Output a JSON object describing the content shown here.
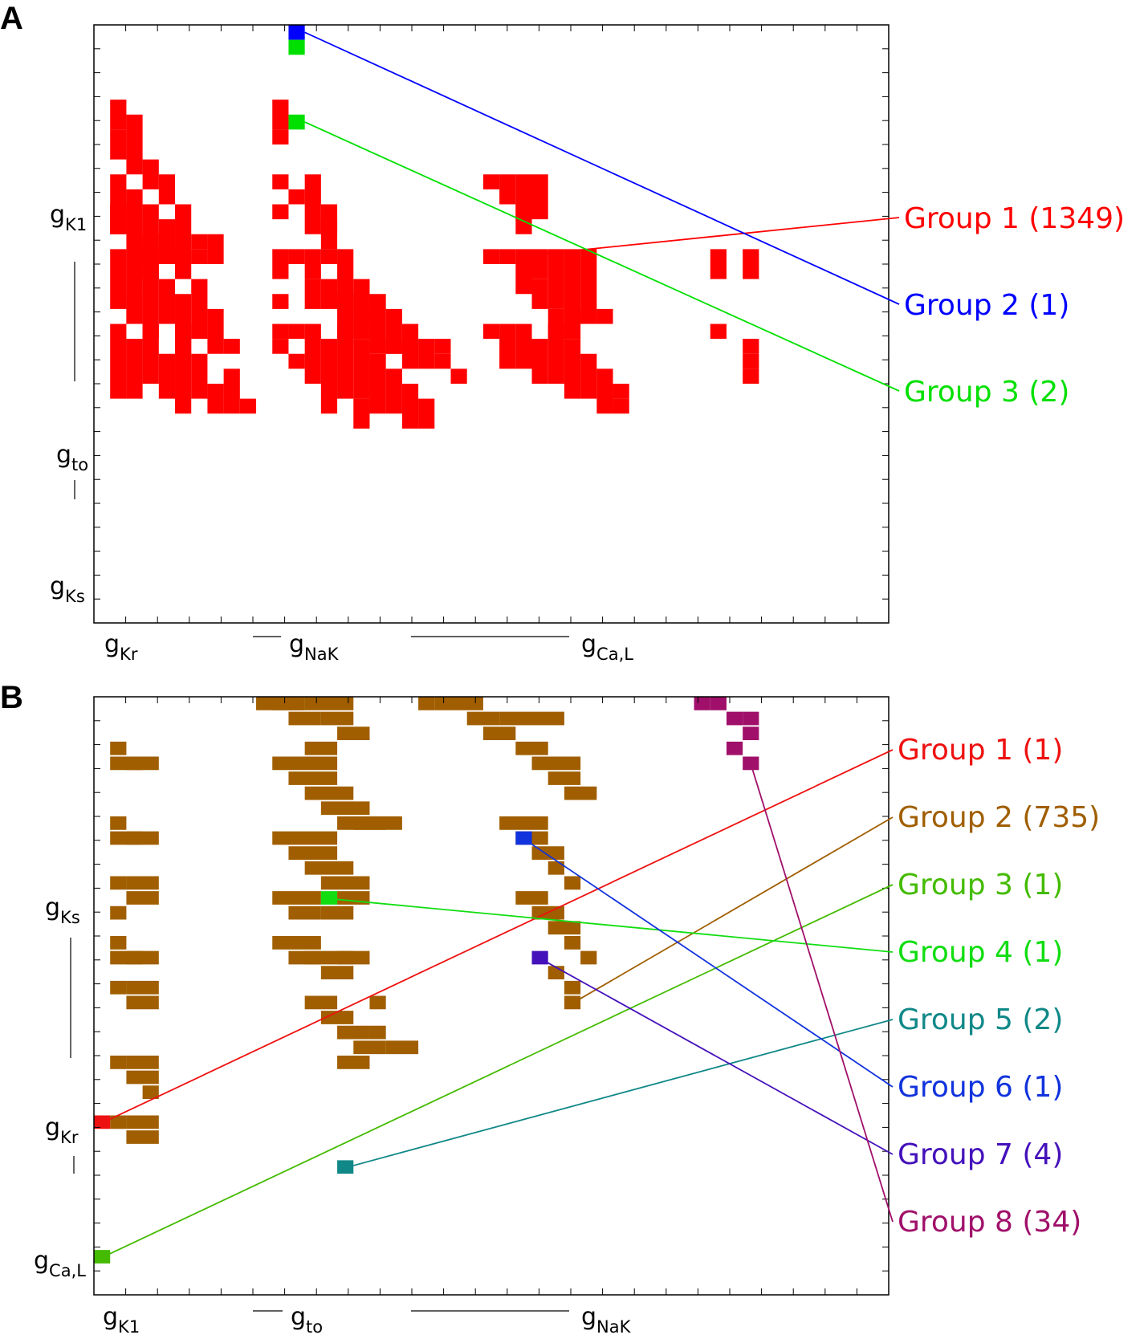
{
  "panels": [
    {
      "label": "A",
      "x_axis_labels": [
        {
          "main": "g",
          "sub": "Kr"
        },
        {
          "main": "g",
          "sub": "NaK"
        },
        {
          "main": "g",
          "sub": "Ca,L"
        }
      ],
      "y_axis_labels": [
        {
          "main": "g",
          "sub": "K1"
        },
        {
          "main": "g",
          "sub": "to"
        },
        {
          "main": "g",
          "sub": "Ks"
        }
      ],
      "legend": [
        {
          "text": "Group 1 (1349)",
          "color": "#ff0000"
        },
        {
          "text": "Group 2 (1)",
          "color": "#0000ff"
        },
        {
          "text": "Group 3 (2)",
          "color": "#00e000"
        }
      ]
    },
    {
      "label": "B",
      "x_axis_labels": [
        {
          "main": "g",
          "sub": "K1"
        },
        {
          "main": "g",
          "sub": "to"
        },
        {
          "main": "g",
          "sub": "NaK"
        }
      ],
      "y_axis_labels": [
        {
          "main": "g",
          "sub": "Ks"
        },
        {
          "main": "g",
          "sub": "Kr"
        },
        {
          "main": "g",
          "sub": "Ca,L"
        }
      ],
      "legend": [
        {
          "text": "Group 1 (1)",
          "color": "#ee1111"
        },
        {
          "text": "Group 2 (735)",
          "color": "#a05e00"
        },
        {
          "text": "Group 3 (1)",
          "color": "#44bb00"
        },
        {
          "text": "Group 4 (1)",
          "color": "#11dd11"
        },
        {
          "text": "Group 5 (2)",
          "color": "#118888"
        },
        {
          "text": "Group 6 (1)",
          "color": "#1133dd"
        },
        {
          "text": "Group 7 (4)",
          "color": "#4411bb"
        },
        {
          "text": "Group 8 (34)",
          "color": "#a0106a"
        }
      ]
    }
  ],
  "chart_data": [
    {
      "type": "heatmap",
      "title": "",
      "grid": false,
      "series": [
        {
          "name": "Group 1 (1349)",
          "color": "#ff0000",
          "count": 1349
        },
        {
          "name": "Group 2 (1)",
          "color": "#0000ff",
          "count": 1
        },
        {
          "name": "Group 3 (2)",
          "color": "#00e000",
          "count": 2
        }
      ],
      "cells": {
        "group1": [
          [
            1,
            5,
            2
          ],
          [
            1,
            7,
            2
          ],
          [
            2,
            6,
            2
          ],
          [
            2,
            8,
            2
          ],
          [
            3,
            9,
            2
          ],
          [
            4,
            10,
            2
          ],
          [
            1,
            10,
            4
          ],
          [
            1,
            12,
            2
          ],
          [
            2,
            11,
            3
          ],
          [
            2,
            13,
            3
          ],
          [
            3,
            12,
            4
          ],
          [
            3,
            14,
            3
          ],
          [
            4,
            13,
            3
          ],
          [
            5,
            12,
            4
          ],
          [
            5,
            15,
            2
          ],
          [
            6,
            14,
            1
          ],
          [
            6,
            15,
            1
          ],
          [
            7,
            14,
            2
          ],
          [
            1,
            15,
            4
          ],
          [
            2,
            16,
            4
          ],
          [
            2,
            18,
            2
          ],
          [
            3,
            15,
            6
          ],
          [
            4,
            17,
            3
          ],
          [
            5,
            18,
            3
          ],
          [
            5,
            20,
            2
          ],
          [
            6,
            17,
            4
          ],
          [
            7,
            19,
            3
          ],
          [
            8,
            21,
            1
          ],
          [
            1,
            20,
            5
          ],
          [
            2,
            21,
            4
          ],
          [
            3,
            20,
            4
          ],
          [
            4,
            22,
            3
          ],
          [
            5,
            21,
            5
          ],
          [
            6,
            22,
            3
          ],
          [
            7,
            24,
            2
          ],
          [
            8,
            23,
            3
          ],
          [
            9,
            25,
            1
          ],
          [
            11,
            5,
            2
          ],
          [
            11,
            7,
            1
          ],
          [
            11,
            10,
            1
          ],
          [
            11,
            12,
            1
          ],
          [
            12,
            11,
            1
          ],
          [
            13,
            10,
            2
          ],
          [
            13,
            12,
            2
          ],
          [
            14,
            12,
            2
          ],
          [
            14,
            13,
            2
          ],
          [
            15,
            15,
            1
          ],
          [
            11,
            15,
            1
          ],
          [
            11,
            16,
            1
          ],
          [
            11,
            18,
            1
          ],
          [
            12,
            15,
            1
          ],
          [
            13,
            15,
            2
          ],
          [
            13,
            17,
            2
          ],
          [
            14,
            15,
            1
          ],
          [
            14,
            17,
            2
          ],
          [
            15,
            16,
            3
          ],
          [
            15,
            18,
            3
          ],
          [
            16,
            17,
            3
          ],
          [
            16,
            19,
            2
          ],
          [
            17,
            18,
            4
          ],
          [
            18,
            19,
            3
          ],
          [
            18,
            21,
            1
          ],
          [
            19,
            20,
            3
          ],
          [
            20,
            21,
            2
          ],
          [
            21,
            21,
            1
          ],
          [
            21,
            22,
            1
          ],
          [
            22,
            23,
            1
          ],
          [
            11,
            20,
            1
          ],
          [
            11,
            21,
            1
          ],
          [
            12,
            20,
            1
          ],
          [
            12,
            22,
            1
          ],
          [
            13,
            20,
            4
          ],
          [
            14,
            21,
            3
          ],
          [
            14,
            24,
            2
          ],
          [
            15,
            20,
            5
          ],
          [
            16,
            21,
            4
          ],
          [
            16,
            25,
            2
          ],
          [
            17,
            22,
            4
          ],
          [
            18,
            23,
            3
          ],
          [
            19,
            24,
            3
          ],
          [
            20,
            25,
            2
          ],
          [
            24,
            10,
            1
          ],
          [
            25,
            10,
            2
          ],
          [
            26,
            10,
            3
          ],
          [
            27,
            10,
            3
          ],
          [
            26,
            12,
            2
          ],
          [
            24,
            15,
            1
          ],
          [
            25,
            15,
            1
          ],
          [
            26,
            15,
            3
          ],
          [
            27,
            15,
            2
          ],
          [
            27,
            17,
            2
          ],
          [
            28,
            15,
            4
          ],
          [
            28,
            19,
            2
          ],
          [
            29,
            15,
            6
          ],
          [
            30,
            15,
            5
          ],
          [
            24,
            20,
            1
          ],
          [
            25,
            20,
            3
          ],
          [
            26,
            20,
            3
          ],
          [
            27,
            21,
            3
          ],
          [
            28,
            20,
            4
          ],
          [
            29,
            21,
            4
          ],
          [
            30,
            22,
            3
          ],
          [
            31,
            23,
            3
          ],
          [
            32,
            24,
            1
          ],
          [
            32,
            25,
            1
          ],
          [
            30,
            19,
            1
          ],
          [
            31,
            19,
            1
          ],
          [
            38,
            15,
            1
          ],
          [
            38,
            16,
            1
          ],
          [
            40,
            15,
            1
          ],
          [
            40,
            16,
            1
          ],
          [
            38,
            20,
            1
          ],
          [
            40,
            21,
            1
          ],
          [
            40,
            22,
            1
          ],
          [
            40,
            23,
            1
          ]
        ],
        "group2": [
          [
            12,
            0
          ]
        ],
        "group3": [
          [
            12,
            1
          ],
          [
            12,
            6
          ]
        ]
      }
    },
    {
      "type": "heatmap",
      "title": "",
      "grid": false,
      "series": [
        {
          "name": "Group 1 (1)",
          "color": "#ee1111",
          "count": 1
        },
        {
          "name": "Group 2 (735)",
          "color": "#a05e00",
          "count": 735
        },
        {
          "name": "Group 3 (1)",
          "color": "#44bb00",
          "count": 1
        },
        {
          "name": "Group 4 (1)",
          "color": "#11dd11",
          "count": 1
        },
        {
          "name": "Group 5 (2)",
          "color": "#118888",
          "count": 2
        },
        {
          "name": "Group 6 (1)",
          "color": "#1133dd",
          "count": 1
        },
        {
          "name": "Group 7 (4)",
          "color": "#4411bb",
          "count": 4
        },
        {
          "name": "Group 8 (34)",
          "color": "#a0106a",
          "count": 34
        }
      ],
      "cells": {
        "group2": [
          [
            1,
            3,
            1
          ],
          [
            1,
            4,
            2
          ],
          [
            2,
            4,
            2
          ],
          [
            1,
            8,
            1
          ],
          [
            1,
            9,
            2
          ],
          [
            2,
            9,
            2
          ],
          [
            1,
            12,
            1
          ],
          [
            2,
            12,
            2
          ],
          [
            2,
            13,
            2
          ],
          [
            1,
            14,
            1
          ],
          [
            1,
            16,
            1
          ],
          [
            1,
            17,
            2
          ],
          [
            2,
            17,
            2
          ],
          [
            1,
            19,
            1
          ],
          [
            2,
            19,
            2
          ],
          [
            2,
            20,
            2
          ],
          [
            1,
            24,
            1
          ],
          [
            2,
            24,
            2
          ],
          [
            2,
            25,
            2
          ],
          [
            3,
            26,
            1
          ],
          [
            1,
            28,
            1
          ],
          [
            2,
            28,
            2
          ],
          [
            2,
            29,
            2
          ],
          [
            10,
            0,
            3
          ],
          [
            11,
            0,
            2
          ],
          [
            12,
            1,
            2
          ],
          [
            13,
            0,
            3
          ],
          [
            14,
            1,
            2
          ],
          [
            15,
            2,
            2
          ],
          [
            13,
            3,
            2
          ],
          [
            11,
            4,
            4
          ],
          [
            12,
            5,
            3
          ],
          [
            13,
            6,
            3
          ],
          [
            14,
            7,
            3
          ],
          [
            15,
            8,
            2
          ],
          [
            16,
            8,
            2
          ],
          [
            17,
            8,
            2
          ],
          [
            11,
            9,
            4
          ],
          [
            12,
            10,
            3
          ],
          [
            13,
            11,
            3
          ],
          [
            14,
            12,
            3
          ],
          [
            11,
            13,
            3
          ],
          [
            12,
            14,
            2
          ],
          [
            14,
            14,
            2
          ],
          [
            15,
            13,
            2
          ],
          [
            11,
            16,
            3
          ],
          [
            12,
            17,
            2
          ],
          [
            13,
            17,
            4
          ],
          [
            14,
            18,
            2
          ],
          [
            15,
            17,
            1
          ],
          [
            17,
            20,
            1
          ],
          [
            13,
            20,
            2
          ],
          [
            14,
            21,
            2
          ],
          [
            15,
            22,
            2
          ],
          [
            16,
            23,
            2
          ],
          [
            17,
            22,
            1
          ],
          [
            18,
            23,
            2
          ],
          [
            15,
            24,
            2
          ],
          [
            22,
            0,
            2
          ],
          [
            23,
            1,
            2
          ],
          [
            24,
            2,
            2
          ],
          [
            25,
            1,
            4
          ],
          [
            26,
            3,
            2
          ],
          [
            27,
            4,
            3
          ],
          [
            28,
            5,
            2
          ],
          [
            29,
            6,
            2
          ],
          [
            25,
            8,
            3
          ],
          [
            26,
            9,
            2
          ],
          [
            27,
            10,
            2
          ],
          [
            28,
            11,
            1
          ],
          [
            29,
            12,
            1
          ],
          [
            26,
            13,
            2
          ],
          [
            27,
            14,
            2
          ],
          [
            28,
            15,
            2
          ],
          [
            29,
            16,
            1
          ],
          [
            30,
            17,
            1
          ],
          [
            28,
            18,
            1
          ],
          [
            29,
            19,
            1
          ],
          [
            29,
            20,
            1
          ],
          [
            20,
            0,
            1
          ],
          [
            21,
            0,
            1
          ]
        ],
        "group8": [
          [
            37,
            0,
            1
          ],
          [
            38,
            0,
            1
          ],
          [
            39,
            1,
            1
          ],
          [
            40,
            1,
            1
          ],
          [
            40,
            2,
            1
          ],
          [
            39,
            3,
            1
          ],
          [
            40,
            4,
            1
          ]
        ],
        "group1": [
          [
            0,
            28
          ]
        ],
        "group3": [
          [
            0,
            37
          ]
        ],
        "group4": [
          [
            14,
            13
          ]
        ],
        "group5": [
          [
            15,
            31
          ]
        ],
        "group6": [
          [
            26,
            9
          ]
        ],
        "group7": [
          [
            27,
            17
          ]
        ]
      }
    }
  ]
}
